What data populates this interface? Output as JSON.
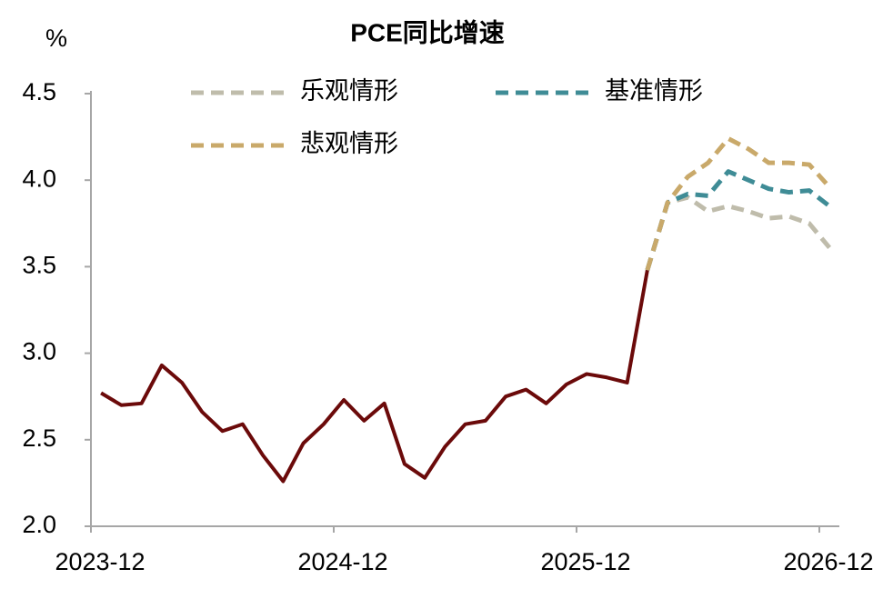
{
  "chart_data": {
    "type": "line",
    "title": "PCE同比增速",
    "y_unit": "%",
    "categories": [
      "2023-12",
      null,
      null,
      null,
      null,
      null,
      null,
      null,
      null,
      null,
      null,
      null,
      "2024-12",
      null,
      null,
      null,
      null,
      null,
      null,
      null,
      null,
      null,
      null,
      null,
      "2025-12",
      null,
      null,
      null,
      null,
      null,
      null,
      null,
      null,
      null,
      null,
      null,
      "2026-12"
    ],
    "series": [
      {
        "color": "#6b0a0a",
        "dashed": false,
        "values": [
          2.77,
          2.7,
          2.71,
          2.93,
          2.83,
          2.66,
          2.55,
          2.59,
          2.41,
          2.26,
          2.48,
          2.59,
          2.73,
          2.61,
          2.71,
          2.36,
          2.28,
          2.46,
          2.59,
          2.61,
          2.75,
          2.79,
          2.71,
          2.82,
          2.88,
          2.86,
          2.83,
          3.48,
          null,
          null,
          null,
          null,
          null,
          null,
          null,
          null,
          null
        ]
      },
      {
        "name": "乐观情形",
        "color": "#bfbcab",
        "dashed": true,
        "values": [
          null,
          null,
          null,
          null,
          null,
          null,
          null,
          null,
          null,
          null,
          null,
          null,
          null,
          null,
          null,
          null,
          null,
          null,
          null,
          null,
          null,
          null,
          null,
          null,
          null,
          null,
          null,
          3.48,
          3.87,
          3.9,
          3.82,
          3.85,
          3.82,
          3.78,
          3.79,
          3.75,
          3.61
        ]
      },
      {
        "name": "基准情形",
        "color": "#3f8c96",
        "dashed": true,
        "values": [
          null,
          null,
          null,
          null,
          null,
          null,
          null,
          null,
          null,
          null,
          null,
          null,
          null,
          null,
          null,
          null,
          null,
          null,
          null,
          null,
          null,
          null,
          null,
          null,
          null,
          null,
          null,
          3.48,
          3.87,
          3.92,
          3.91,
          4.05,
          4.0,
          3.95,
          3.93,
          3.94,
          3.85
        ]
      },
      {
        "name": "悲观情形",
        "color": "#c9a96a",
        "dashed": true,
        "values": [
          null,
          null,
          null,
          null,
          null,
          null,
          null,
          null,
          null,
          null,
          null,
          null,
          null,
          null,
          null,
          null,
          null,
          null,
          null,
          null,
          null,
          null,
          null,
          null,
          null,
          null,
          null,
          3.48,
          3.87,
          4.02,
          4.1,
          4.24,
          4.18,
          4.1,
          4.1,
          4.09,
          3.96
        ]
      }
    ],
    "ylim": [
      2.0,
      4.5
    ],
    "yticks": [
      {
        "value": 2,
        "label": "2.0"
      },
      {
        "value": 2.5,
        "label": "2.5"
      },
      {
        "value": 3,
        "label": "3.0"
      },
      {
        "value": 3.5,
        "label": "3.5"
      },
      {
        "value": 4,
        "label": "4.0"
      },
      {
        "value": 4.5,
        "label": "4.5"
      }
    ],
    "grid": false
  }
}
